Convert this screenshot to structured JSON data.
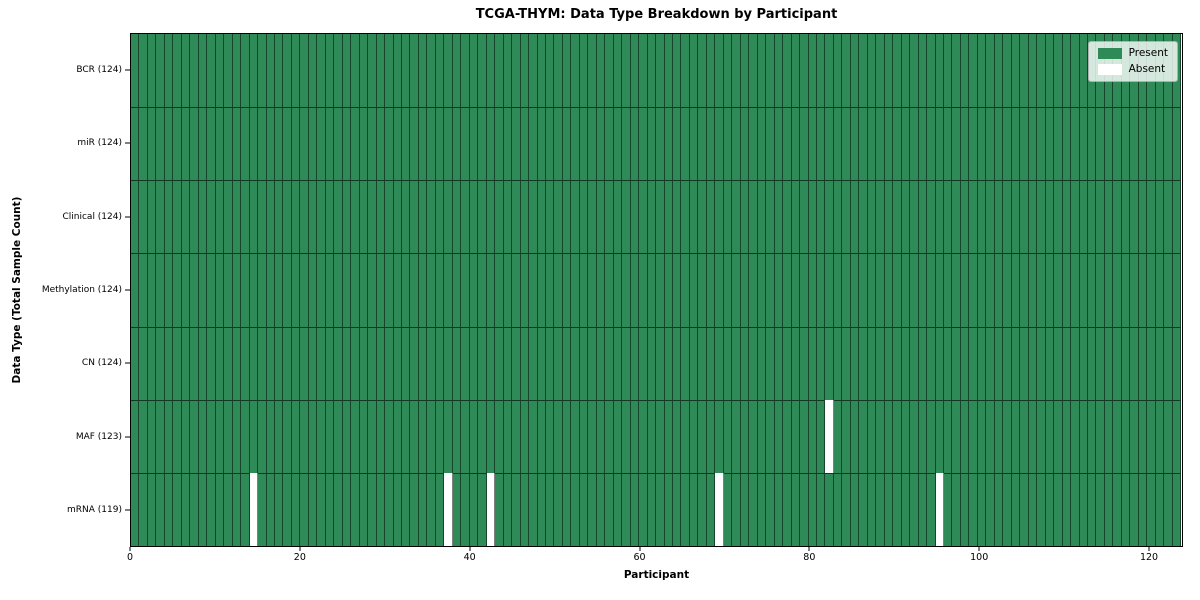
{
  "chart_data": {
    "type": "heatmap",
    "title": "TCGA-THYM: Data Type Breakdown by Participant",
    "xlabel": "Participant",
    "ylabel": "Data Type (Total Sample Count)",
    "x_ticks": [
      0,
      20,
      40,
      60,
      80,
      100,
      120
    ],
    "x_range": [
      0,
      124
    ],
    "n_participants": 124,
    "grid": "cell-edges-only",
    "rows": [
      {
        "label": "BCR (124)",
        "data_type": "BCR",
        "present_count": 124,
        "absent_participants": []
      },
      {
        "label": "miR (124)",
        "data_type": "miR",
        "present_count": 124,
        "absent_participants": []
      },
      {
        "label": "Clinical (124)",
        "data_type": "Clinical",
        "present_count": 124,
        "absent_participants": []
      },
      {
        "label": "Methylation (124)",
        "data_type": "Methylation",
        "present_count": 124,
        "absent_participants": []
      },
      {
        "label": "CN (124)",
        "data_type": "CN",
        "present_count": 124,
        "absent_participants": []
      },
      {
        "label": "MAF (123)",
        "data_type": "MAF",
        "present_count": 123,
        "absent_participants": [
          82
        ]
      },
      {
        "label": "mRNA (119)",
        "data_type": "mRNA",
        "present_count": 119,
        "absent_participants": [
          14,
          37,
          42,
          69,
          95
        ]
      }
    ],
    "legend": {
      "position": "upper-right",
      "items": [
        {
          "label": "Present",
          "color": "#2e8b57"
        },
        {
          "label": "Absent",
          "color": "#ffffff"
        }
      ]
    },
    "colors": {
      "present": "#2e8b57",
      "absent": "#ffffff",
      "grid_edge": "rgba(0,0,0,0.5)",
      "row_edge": "rgba(0,0,0,0.6)",
      "frame": "#000000"
    }
  }
}
